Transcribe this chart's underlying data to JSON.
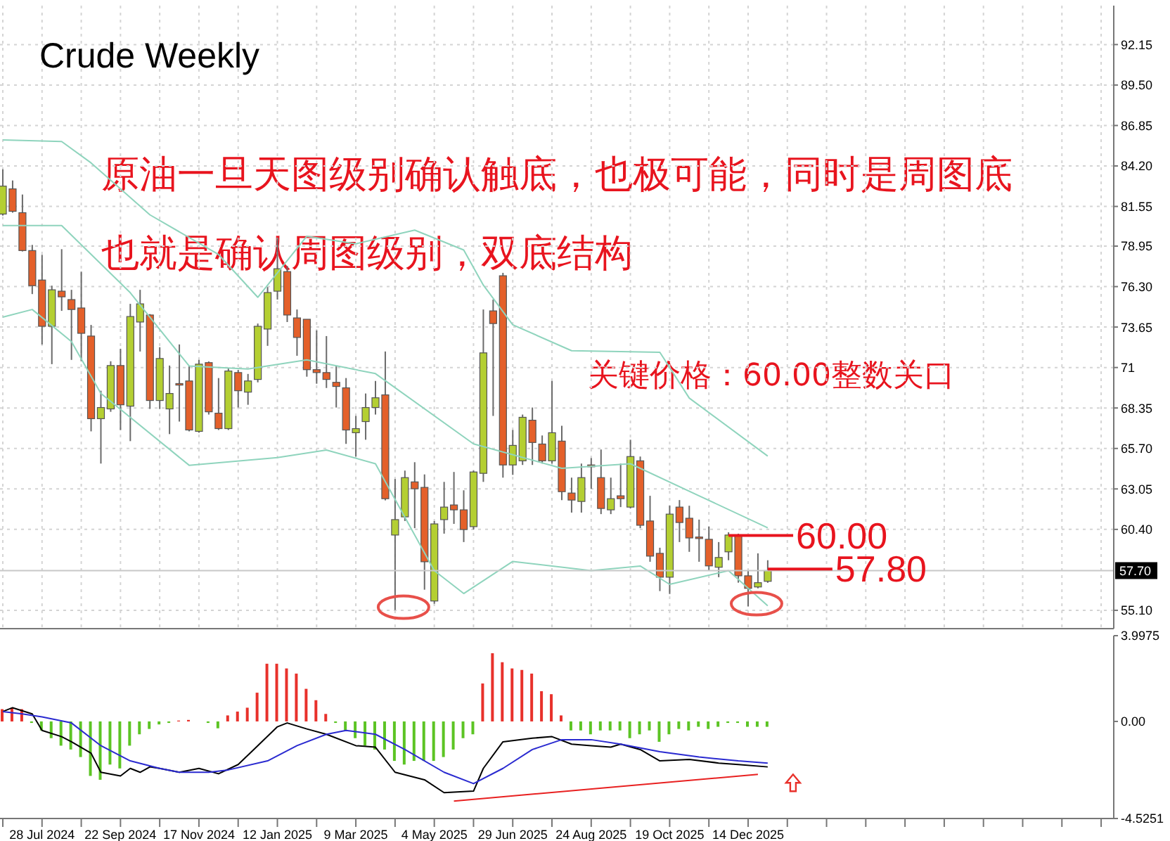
{
  "chart_data": [
    {
      "type": "candlestick",
      "title": "Crude Weekly",
      "tick_labels": "y",
      "grid": true,
      "x": [
        "2024-06-30",
        "2024-07-07",
        "2024-07-14",
        "2024-07-21",
        "2024-07-28",
        "2024-08-04",
        "2024-08-11",
        "2024-08-18",
        "2024-08-25",
        "2024-09-01",
        "2024-09-08",
        "2024-09-15",
        "2024-09-22",
        "2024-09-29",
        "2024-10-06",
        "2024-10-13",
        "2024-10-20",
        "2024-10-27",
        "2024-11-03",
        "2024-11-10",
        "2024-11-17",
        "2024-11-24",
        "2024-12-01",
        "2024-12-08",
        "2024-12-15",
        "2024-12-22",
        "2024-12-29",
        "2025-01-05",
        "2025-01-12",
        "2025-01-19",
        "2025-01-26",
        "2025-02-02",
        "2025-02-09",
        "2025-02-16",
        "2025-02-23",
        "2025-03-02",
        "2025-03-09",
        "2025-03-16",
        "2025-03-23",
        "2025-03-30",
        "2025-04-06",
        "2025-04-13",
        "2025-04-20",
        "2025-04-27",
        "2025-05-04",
        "2025-05-11",
        "2025-05-18",
        "2025-05-25",
        "2025-06-01",
        "2025-06-08",
        "2025-06-15",
        "2025-06-22",
        "2025-06-29",
        "2025-07-06",
        "2025-07-13",
        "2025-07-20",
        "2025-07-27",
        "2025-08-03",
        "2025-08-10",
        "2025-08-17",
        "2025-08-24",
        "2025-08-31",
        "2025-09-07",
        "2025-09-14",
        "2025-09-21",
        "2025-09-28",
        "2025-10-05",
        "2025-10-12",
        "2025-10-19",
        "2025-10-26",
        "2025-11-02",
        "2025-11-09",
        "2025-11-16",
        "2025-11-23",
        "2025-11-30",
        "2025-12-07",
        "2025-12-14",
        "2025-12-21",
        "2025-12-28"
      ],
      "ohlc": [
        [
          81.05,
          83.98,
          80.95,
          82.88
        ],
        [
          82.7,
          83.25,
          81.14,
          81.23
        ],
        [
          81.14,
          82.33,
          78.6,
          78.66
        ],
        [
          78.66,
          79.03,
          75.81,
          76.36
        ],
        [
          76.73,
          78.38,
          72.51,
          73.7
        ],
        [
          73.7,
          76.36,
          71.22,
          76.09
        ],
        [
          76.0,
          78.75,
          74.71,
          75.63
        ],
        [
          75.45,
          76.09,
          71.5,
          74.8
        ],
        [
          74.9,
          77.28,
          71.41,
          73.24
        ],
        [
          73.06,
          73.79,
          66.82,
          67.65
        ],
        [
          67.65,
          69.48,
          64.71,
          68.38
        ],
        [
          68.29,
          71.41,
          68.1,
          71.13
        ],
        [
          71.13,
          72.23,
          66.91,
          68.56
        ],
        [
          68.47,
          75.17,
          66.18,
          74.34
        ],
        [
          73.98,
          76.09,
          72.05,
          75.17
        ],
        [
          74.44,
          74.5,
          68.29,
          68.84
        ],
        [
          68.84,
          72.33,
          68.29,
          71.59
        ],
        [
          68.29,
          71.13,
          66.64,
          69.3
        ],
        [
          69.95,
          72.51,
          67.46,
          69.85
        ],
        [
          70.12,
          71.13,
          66.82,
          66.91
        ],
        [
          66.82,
          71.5,
          66.73,
          71.22
        ],
        [
          71.32,
          71.4,
          67.92,
          68.1
        ],
        [
          68.01,
          70.31,
          66.91,
          67.0
        ],
        [
          67.0,
          70.95,
          66.91,
          70.77
        ],
        [
          70.67,
          70.85,
          68.38,
          69.48
        ],
        [
          69.39,
          70.58,
          68.56,
          70.12
        ],
        [
          70.22,
          73.88,
          70.03,
          73.7
        ],
        [
          73.52,
          76.27,
          72.42,
          75.91
        ],
        [
          76.0,
          79.48,
          75.45,
          77.47
        ],
        [
          77.28,
          77.65,
          73.98,
          74.44
        ],
        [
          74.25,
          74.8,
          71.77,
          72.97
        ],
        [
          74.16,
          74.16,
          70.4,
          70.86
        ],
        [
          70.86,
          73.43,
          69.94,
          70.67
        ],
        [
          70.67,
          73.06,
          69.66,
          70.22
        ],
        [
          70.03,
          71.13,
          68.38,
          69.76
        ],
        [
          69.67,
          70.31,
          66.0,
          66.91
        ],
        [
          66.73,
          67.83,
          65.17,
          67.0
        ],
        [
          67.46,
          69.3,
          66.27,
          68.38
        ],
        [
          68.38,
          70.12,
          67.92,
          69.02
        ],
        [
          69.21,
          72.05,
          62.3,
          62.41
        ],
        [
          60.03,
          63.7,
          55.12,
          61.04
        ],
        [
          61.22,
          64.25,
          60.95,
          63.79
        ],
        [
          63.51,
          64.8,
          60.48,
          63.06
        ],
        [
          63.15,
          64.0,
          56.45,
          58.28
        ],
        [
          55.71,
          60.95,
          55.53,
          60.76
        ],
        [
          61.04,
          63.51,
          60.12,
          61.86
        ],
        [
          62.0,
          64.16,
          60.76,
          61.68
        ],
        [
          61.68,
          62.96,
          59.57,
          60.39
        ],
        [
          60.58,
          64.25,
          60.39,
          64.16
        ],
        [
          64.07,
          74.8,
          63.51,
          71.96
        ],
        [
          74.71,
          75.45,
          67.83,
          73.88
        ],
        [
          77.01,
          77.2,
          63.79,
          64.62
        ],
        [
          64.62,
          66.91,
          63.97,
          65.9
        ],
        [
          64.89,
          67.92,
          64.62,
          67.74
        ],
        [
          67.55,
          68.38,
          64.62,
          66.09
        ],
        [
          65.99,
          66.55,
          64.71,
          64.89
        ],
        [
          64.89,
          70.12,
          64.71,
          66.73
        ],
        [
          66.18,
          67.19,
          62.32,
          62.87
        ],
        [
          62.78,
          63.79,
          61.5,
          62.32
        ],
        [
          62.23,
          64.71,
          61.5,
          63.79
        ],
        [
          64.62,
          65.07,
          63.06,
          64.5
        ],
        [
          63.79,
          65.63,
          61.4,
          61.77
        ],
        [
          61.68,
          63.79,
          61.4,
          62.41
        ],
        [
          62.6,
          64.71,
          61.86,
          62.41
        ],
        [
          61.86,
          66.27,
          61.77,
          65.17
        ],
        [
          64.89,
          65.17,
          60.48,
          60.67
        ],
        [
          60.95,
          62.6,
          58.28,
          58.65
        ],
        [
          58.83,
          59.2,
          56.36,
          57.27
        ],
        [
          57.27,
          61.95,
          56.17,
          61.4
        ],
        [
          61.86,
          62.32,
          59.57,
          60.85
        ],
        [
          61.13,
          61.95,
          58.93,
          59.84
        ],
        [
          59.9,
          61.04,
          58.28,
          59.8
        ],
        [
          59.75,
          60.58,
          57.73,
          58.01
        ],
        [
          57.92,
          59.57,
          57.27,
          58.56
        ],
        [
          58.93,
          60.21,
          58.38,
          60.03
        ],
        [
          60.03,
          60.12,
          56.91,
          57.36
        ],
        [
          57.36,
          57.73,
          55.35,
          56.54
        ],
        [
          56.63,
          58.83,
          56.54,
          56.91
        ],
        [
          57.0,
          58.38,
          56.9,
          57.7
        ]
      ],
      "colors": [
        "#b4cf32",
        "#e4602a",
        "#e4602a",
        "#e4602a",
        "#e4602a",
        "#b4cf32",
        "#e4602a",
        "#e4602a",
        "#e4602a",
        "#e4602a",
        "#b4cf32",
        "#b4cf32",
        "#e4602a",
        "#b4cf32",
        "#b4cf32",
        "#e4602a",
        "#b4cf32",
        "#b4cf32",
        "#e4602a",
        "#e4602a",
        "#b4cf32",
        "#e4602a",
        "#e4602a",
        "#b4cf32",
        "#e4602a",
        "#b4cf32",
        "#b4cf32",
        "#b4cf32",
        "#b4cf32",
        "#e4602a",
        "#e4602a",
        "#e4602a",
        "#e4602a",
        "#e4602a",
        "#e4602a",
        "#e4602a",
        "#b4cf32",
        "#b4cf32",
        "#b4cf32",
        "#e4602a",
        "#b4cf32",
        "#b4cf32",
        "#e4602a",
        "#e4602a",
        "#b4cf32",
        "#b4cf32",
        "#e4602a",
        "#e4602a",
        "#b4cf32",
        "#b4cf32",
        "#e4602a",
        "#e4602a",
        "#b4cf32",
        "#b4cf32",
        "#e4602a",
        "#e4602a",
        "#b4cf32",
        "#e4602a",
        "#e4602a",
        "#b4cf32",
        "#e4602a",
        "#e4602a",
        "#b4cf32",
        "#e4602a",
        "#b4cf32",
        "#e4602a",
        "#e4602a",
        "#e4602a",
        "#b4cf32",
        "#e4602a",
        "#e4602a",
        "#e4602a",
        "#e4602a",
        "#b4cf32",
        "#b4cf32",
        "#e4602a",
        "#e4602a",
        "#b4cf32",
        "#b4cf32"
      ],
      "series": [
        {
          "type": "line",
          "color": "#8fd4bd",
          "x": [
            "2024-06-30",
            "2024-08-11",
            "2024-09-01",
            "2024-10-13",
            "2024-12-01",
            "2024-12-29",
            "2025-02-02",
            "2025-03-09",
            "2025-04-20",
            "2025-05-25",
            "2025-06-08",
            "2025-06-29",
            "2025-08-10",
            "2025-10-12",
            "2025-11-02",
            "2025-12-28"
          ],
          "values": [
            85.9,
            85.8,
            84.4,
            81.0,
            78.4,
            75.6,
            79.6,
            79.1,
            80.0,
            78.7,
            76.4,
            73.8,
            72.1,
            72.0,
            69.0,
            65.2
          ]
        },
        {
          "type": "line",
          "color": "#8fd4bd",
          "x": [
            "2024-06-30",
            "2024-08-11",
            "2024-09-29",
            "2024-11-10",
            "2024-12-22",
            "2025-02-02",
            "2025-03-23",
            "2025-06-01",
            "2025-08-03",
            "2025-09-21",
            "2025-11-09",
            "2025-12-28"
          ],
          "values": [
            80.3,
            80.3,
            75.9,
            71.1,
            70.9,
            71.5,
            70.6,
            66.0,
            64.4,
            64.7,
            62.6,
            60.5
          ]
        },
        {
          "type": "line",
          "color": "#8fd4bd",
          "x": [
            "2024-06-30",
            "2024-07-21",
            "2024-08-18",
            "2024-09-08",
            "2024-11-10",
            "2025-01-12",
            "2025-02-16",
            "2025-03-23",
            "2025-05-04",
            "2025-05-25",
            "2025-06-29",
            "2025-08-24",
            "2025-09-28",
            "2025-10-19",
            "2025-11-30",
            "2025-12-28"
          ],
          "values": [
            74.3,
            74.8,
            72.7,
            69.3,
            64.6,
            65.1,
            65.6,
            64.7,
            57.7,
            56.2,
            58.3,
            57.7,
            58.0,
            56.8,
            57.7,
            55.4
          ]
        }
      ],
      "xlim": [
        "2024-06-28",
        "2026-09-01"
      ],
      "xticks": [
        {
          "value": "2024-06-30",
          "label": null
        },
        {
          "value": "2024-07-28",
          "label": null
        },
        {
          "value": "2024-08-25",
          "label": null
        },
        {
          "value": "2024-09-22",
          "label": null
        },
        {
          "value": "2024-10-20",
          "label": null
        },
        {
          "value": "2024-11-17",
          "label": null
        },
        {
          "value": "2024-12-15",
          "label": null
        },
        {
          "value": "2025-01-12",
          "label": null
        },
        {
          "value": "2025-02-09",
          "label": null
        },
        {
          "value": "2025-03-09",
          "label": null
        },
        {
          "value": "2025-04-06",
          "label": null
        },
        {
          "value": "2025-05-04",
          "label": null
        },
        {
          "value": "2025-06-01",
          "label": null
        },
        {
          "value": "2025-06-29",
          "label": null
        },
        {
          "value": "2025-07-27",
          "label": null
        },
        {
          "value": "2025-08-24",
          "label": null
        },
        {
          "value": "2025-09-21",
          "label": null
        },
        {
          "value": "2025-10-19",
          "label": null
        },
        {
          "value": "2025-11-16",
          "label": null
        },
        {
          "value": "2025-12-14",
          "label": null
        },
        {
          "value": "2026-01-11",
          "label": null
        },
        {
          "value": "2026-02-08",
          "label": null
        },
        {
          "value": "2026-03-08",
          "label": null
        },
        {
          "value": "2026-04-05",
          "label": null
        },
        {
          "value": "2026-05-03",
          "label": null
        },
        {
          "value": "2026-05-31",
          "label": null
        },
        {
          "value": "2026-06-28",
          "label": null
        },
        {
          "value": "2026-07-26",
          "label": null
        },
        {
          "value": "2026-08-23",
          "label": null
        }
      ],
      "ylim": [
        53.9,
        94.7
      ],
      "yticks": [
        {
          "value": 55.1,
          "label": "55.10"
        },
        {
          "value": 60.4,
          "label": "60.40"
        },
        {
          "value": 63.05,
          "label": "63.05"
        },
        {
          "value": 65.7,
          "label": "65.70"
        },
        {
          "value": 68.35,
          "label": "68.35"
        },
        71,
        {
          "value": 73.65,
          "label": "73.65"
        },
        {
          "value": 76.3,
          "label": "76.30"
        },
        {
          "value": 78.95,
          "label": "78.95"
        },
        {
          "value": 81.55,
          "label": "81.55"
        },
        {
          "value": 84.2,
          "label": "84.20"
        },
        {
          "value": 86.85,
          "label": "86.85"
        },
        {
          "value": 89.5,
          "label": "89.50"
        },
        {
          "value": 92.15,
          "label": "92.15"
        }
      ],
      "ref_lines": [
        {
          "axis": "y",
          "value": 57.7,
          "label": "57.70",
          "color": "#c8c8c8"
        }
      ],
      "annotations": [
        "原油一旦天图级别确认触底，也极可能，同时是周图底",
        "也就是确认周图级别，双底结构",
        "关键价格：60.00整数关口",
        {
          "text": "60.00",
          "x": "2025-11-30",
          "y": 60.0
        },
        {
          "text": "57.80",
          "x": "2025-12-28",
          "y": 57.8
        }
      ]
    },
    {
      "type": "bar",
      "x": [
        "2024-06-30",
        "2024-07-07",
        "2024-07-14",
        "2024-07-21",
        "2024-07-28",
        "2024-08-04",
        "2024-08-11",
        "2024-08-18",
        "2024-08-25",
        "2024-09-01",
        "2024-09-08",
        "2024-09-15",
        "2024-09-22",
        "2024-09-29",
        "2024-10-06",
        "2024-10-13",
        "2024-10-20",
        "2024-10-27",
        "2024-11-03",
        "2024-11-10",
        "2024-11-17",
        "2024-11-24",
        "2024-12-01",
        "2024-12-08",
        "2024-12-15",
        "2024-12-22",
        "2024-12-29",
        "2025-01-05",
        "2025-01-12",
        "2025-01-19",
        "2025-01-26",
        "2025-02-02",
        "2025-02-09",
        "2025-02-16",
        "2025-02-23",
        "2025-03-02",
        "2025-03-09",
        "2025-03-16",
        "2025-03-23",
        "2025-03-30",
        "2025-04-06",
        "2025-04-13",
        "2025-04-20",
        "2025-04-27",
        "2025-05-04",
        "2025-05-11",
        "2025-05-18",
        "2025-05-25",
        "2025-06-01",
        "2025-06-08",
        "2025-06-15",
        "2025-06-22",
        "2025-06-29",
        "2025-07-06",
        "2025-07-13",
        "2025-07-20",
        "2025-07-27",
        "2025-08-03",
        "2025-08-10",
        "2025-08-17",
        "2025-08-24",
        "2025-08-31",
        "2025-09-07",
        "2025-09-14",
        "2025-09-21",
        "2025-09-28",
        "2025-10-05",
        "2025-10-12",
        "2025-10-19",
        "2025-10-26",
        "2025-11-02",
        "2025-11-09",
        "2025-11-16",
        "2025-11-23",
        "2025-11-30",
        "2025-12-07",
        "2025-12-14",
        "2025-12-21",
        "2025-12-28"
      ],
      "series": [
        {
          "values": [
            0.57,
            0.64,
            0.57,
            -0.07,
            -0.42,
            -0.78,
            -1.13,
            -1.31,
            -1.66,
            -2.54,
            -2.72,
            -2.01,
            -2.19,
            -1.13,
            -0.6,
            -0.35,
            -0.14,
            -0.07,
            0.04,
            0.07,
            0,
            -0.07,
            -0.32,
            0.28,
            0.46,
            0.64,
            1.34,
            2.69,
            2.69,
            2.47,
            2.23,
            1.52,
            0.99,
            0.35,
            -0.07,
            -0.42,
            -0.78,
            -1.13,
            -1.31,
            -1.31,
            -1.84,
            -2.01,
            -1.84,
            -1.84,
            -1.84,
            -1.66,
            -1.31,
            -0.78,
            -0.6,
            1.77,
            3.18,
            2.76,
            2.47,
            2.4,
            2.23,
            1.41,
            1.27,
            0.28,
            -0.42,
            -0.42,
            -0.6,
            -0.42,
            -0.42,
            -0.42,
            -0.78,
            -0.6,
            -0.42,
            -0.95,
            -0.6,
            -0.35,
            -0.42,
            -0.25,
            -0.35,
            -0.25,
            -0.07,
            -0.07,
            -0.25,
            -0.25,
            -0.25
          ],
          "colors": [
            "#e8312b",
            "#e8312b",
            "#e8312b",
            "#5cc424",
            "#5cc424",
            "#5cc424",
            "#5cc424",
            "#5cc424",
            "#5cc424",
            "#5cc424",
            "#5cc424",
            "#5cc424",
            "#5cc424",
            "#5cc424",
            "#5cc424",
            "#5cc424",
            "#5cc424",
            "#5cc424",
            "#e8312b",
            "#e8312b",
            "#5cc424",
            "#5cc424",
            "#5cc424",
            "#e8312b",
            "#e8312b",
            "#e8312b",
            "#e8312b",
            "#e8312b",
            "#e8312b",
            "#e8312b",
            "#e8312b",
            "#e8312b",
            "#e8312b",
            "#e8312b",
            "#5cc424",
            "#5cc424",
            "#5cc424",
            "#5cc424",
            "#5cc424",
            "#5cc424",
            "#5cc424",
            "#5cc424",
            "#5cc424",
            "#5cc424",
            "#5cc424",
            "#5cc424",
            "#5cc424",
            "#5cc424",
            "#5cc424",
            "#e8312b",
            "#e8312b",
            "#e8312b",
            "#e8312b",
            "#e8312b",
            "#e8312b",
            "#e8312b",
            "#e8312b",
            "#e8312b",
            "#5cc424",
            "#5cc424",
            "#5cc424",
            "#5cc424",
            "#5cc424",
            "#5cc424",
            "#5cc424",
            "#5cc424",
            "#5cc424",
            "#5cc424",
            "#5cc424",
            "#5cc424",
            "#5cc424",
            "#5cc424",
            "#5cc424",
            "#5cc424",
            "#5cc424",
            "#5cc424",
            "#5cc424",
            "#5cc424",
            "#5cc424"
          ]
        },
        {
          "type": "line",
          "color": "#000000",
          "x": [
            "2024-06-30",
            "2024-07-07",
            "2024-07-21",
            "2024-07-28",
            "2024-08-11",
            "2024-08-18",
            "2024-09-01",
            "2024-09-08",
            "2024-09-22",
            "2024-09-29",
            "2024-10-06",
            "2024-10-13",
            "2024-10-20",
            "2024-11-03",
            "2024-11-17",
            "2024-12-01",
            "2024-12-15",
            "2024-12-29",
            "2025-01-12",
            "2025-01-19",
            "2025-02-02",
            "2025-02-16",
            "2025-03-09",
            "2025-03-23",
            "2025-04-06",
            "2025-04-27",
            "2025-05-11",
            "2025-06-01",
            "2025-06-08",
            "2025-06-22",
            "2025-07-13",
            "2025-07-27",
            "2025-08-10",
            "2025-08-24",
            "2025-09-07",
            "2025-09-14",
            "2025-09-28",
            "2025-10-12",
            "2025-11-02",
            "2025-11-23",
            "2025-12-07",
            "2025-12-28"
          ],
          "values": [
            0.46,
            0.64,
            0.35,
            -0.42,
            -0.71,
            -0.95,
            -1.48,
            -2.37,
            -2.54,
            -2.19,
            -2.37,
            -2.12,
            -2.19,
            -2.37,
            -2.19,
            -2.44,
            -2.01,
            -1.13,
            -0.25,
            -0.07,
            -0.35,
            -0.6,
            -1.13,
            -1.2,
            -2.37,
            -2.72,
            -3.32,
            -3.25,
            -2.19,
            -0.95,
            -0.78,
            -0.71,
            -1.06,
            -1.13,
            -1.2,
            -1.06,
            -1.31,
            -1.84,
            -1.77,
            -1.94,
            -2.01,
            -2.12
          ]
        },
        {
          "type": "line",
          "color": "#2a2ad0",
          "x": [
            "2024-06-30",
            "2024-07-14",
            "2024-07-28",
            "2024-08-18",
            "2024-09-08",
            "2024-09-29",
            "2024-10-20",
            "2024-11-03",
            "2024-11-24",
            "2024-12-08",
            "2025-01-05",
            "2025-01-26",
            "2025-02-16",
            "2025-03-02",
            "2025-03-23",
            "2025-04-13",
            "2025-05-11",
            "2025-06-01",
            "2025-06-22",
            "2025-07-13",
            "2025-08-03",
            "2025-08-24",
            "2025-09-14",
            "2025-10-12",
            "2025-11-09",
            "2025-12-07",
            "2025-12-28"
          ],
          "values": [
            0.46,
            0.35,
            0.21,
            -0.07,
            -1.13,
            -1.84,
            -2.19,
            -2.37,
            -2.37,
            -2.26,
            -1.84,
            -1.13,
            -0.6,
            -0.42,
            -0.6,
            -1.31,
            -2.37,
            -2.9,
            -2.19,
            -1.31,
            -0.85,
            -0.85,
            -1.06,
            -1.41,
            -1.66,
            -1.84,
            -1.94
          ]
        },
        {
          "type": "line",
          "color": "#e82020",
          "x": [
            "2025-05-18",
            "2025-12-21"
          ],
          "values": [
            -3.71,
            -2.47
          ]
        }
      ],
      "xlim": [
        "2024-06-28",
        "2026-09-01"
      ],
      "xticks": [
        {
          "value": "2024-06-30",
          "label": null
        },
        {
          "value": "2024-07-28",
          "label": "28 Jul 2024"
        },
        {
          "value": "2024-08-25",
          "label": null
        },
        {
          "value": "2024-09-22",
          "label": "22 Sep 2024"
        },
        {
          "value": "2024-10-20",
          "label": null
        },
        {
          "value": "2024-11-17",
          "label": "17 Nov 2024"
        },
        {
          "value": "2024-12-15",
          "label": null
        },
        {
          "value": "2025-01-12",
          "label": "12 Jan 2025"
        },
        {
          "value": "2025-02-09",
          "label": null
        },
        {
          "value": "2025-03-09",
          "label": "9 Mar 2025"
        },
        {
          "value": "2025-04-06",
          "label": null
        },
        {
          "value": "2025-05-04",
          "label": "4 May 2025"
        },
        {
          "value": "2025-06-01",
          "label": null
        },
        {
          "value": "2025-06-29",
          "label": "29 Jun 2025"
        },
        {
          "value": "2025-07-27",
          "label": null
        },
        {
          "value": "2025-08-24",
          "label": "24 Aug 2025"
        },
        {
          "value": "2025-09-21",
          "label": null
        },
        {
          "value": "2025-10-19",
          "label": "19 Oct 2025"
        },
        {
          "value": "2025-11-16",
          "label": null
        },
        {
          "value": "2025-12-14",
          "label": "14 Dec 2025"
        },
        {
          "value": "2026-01-11",
          "label": null
        },
        {
          "value": "2026-02-08",
          "label": null
        },
        {
          "value": "2026-03-08",
          "label": null
        },
        {
          "value": "2026-04-05",
          "label": null
        },
        {
          "value": "2026-05-03",
          "label": null
        },
        {
          "value": "2026-05-31",
          "label": null
        },
        {
          "value": "2026-06-28",
          "label": null
        },
        {
          "value": "2026-07-26",
          "label": null
        },
        {
          "value": "2026-08-23",
          "label": null
        }
      ],
      "ylim": [
        -4.5251,
        3.9975
      ],
      "yticks": [
        -4.5251,
        {
          "value": 0,
          "label": "0.00"
        },
        3.9975
      ]
    }
  ]
}
